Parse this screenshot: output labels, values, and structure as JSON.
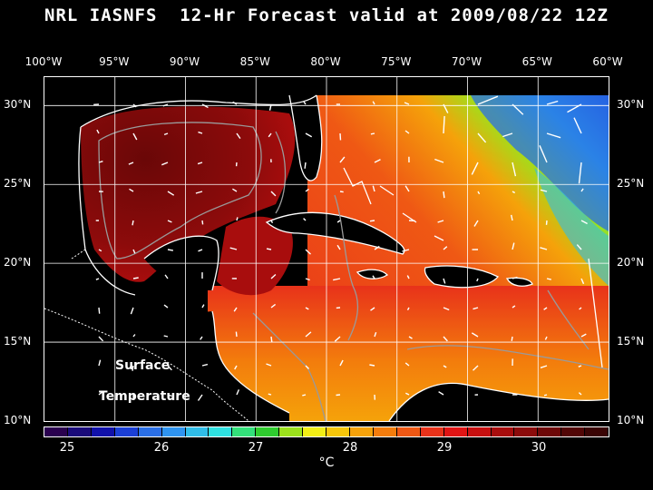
{
  "header": {
    "title": "NRL IASNFS  12-Hr Forecast valid at 2009/08/22 12Z"
  },
  "axes": {
    "longitudes": [
      "100°W",
      "95°W",
      "90°W",
      "85°W",
      "80°W",
      "75°W",
      "70°W",
      "65°W",
      "60°W"
    ],
    "latitudes_left": [
      "30°N",
      "25°N",
      "20°N",
      "15°N",
      "10°N"
    ],
    "latitudes_right": [
      "30°N",
      "25°N",
      "20°N",
      "15°N",
      "10°N"
    ]
  },
  "map": {
    "extent": {
      "lon_min": -100,
      "lon_max": -60,
      "lat_min": 10,
      "lat_max": 31.8
    },
    "label_line1": "Surface",
    "label_line2": "Temperature"
  },
  "colorbar": {
    "colors": [
      "#2a004f",
      "#1a0a7a",
      "#1111aa",
      "#1b3fd6",
      "#2a6fe6",
      "#2f94f0",
      "#30bde8",
      "#2ee0e0",
      "#33e07a",
      "#2fcc2f",
      "#9ce21c",
      "#f2ee16",
      "#f7c70a",
      "#f5a20a",
      "#f37c0c",
      "#ef5814",
      "#e8321a",
      "#e01414",
      "#c81010",
      "#a80d0d",
      "#8c0b0b",
      "#6e0808",
      "#520606",
      "#3a0404"
    ],
    "ticks": [
      "25",
      "26",
      "27",
      "28",
      "29",
      "30"
    ],
    "unit": "°C"
  }
}
